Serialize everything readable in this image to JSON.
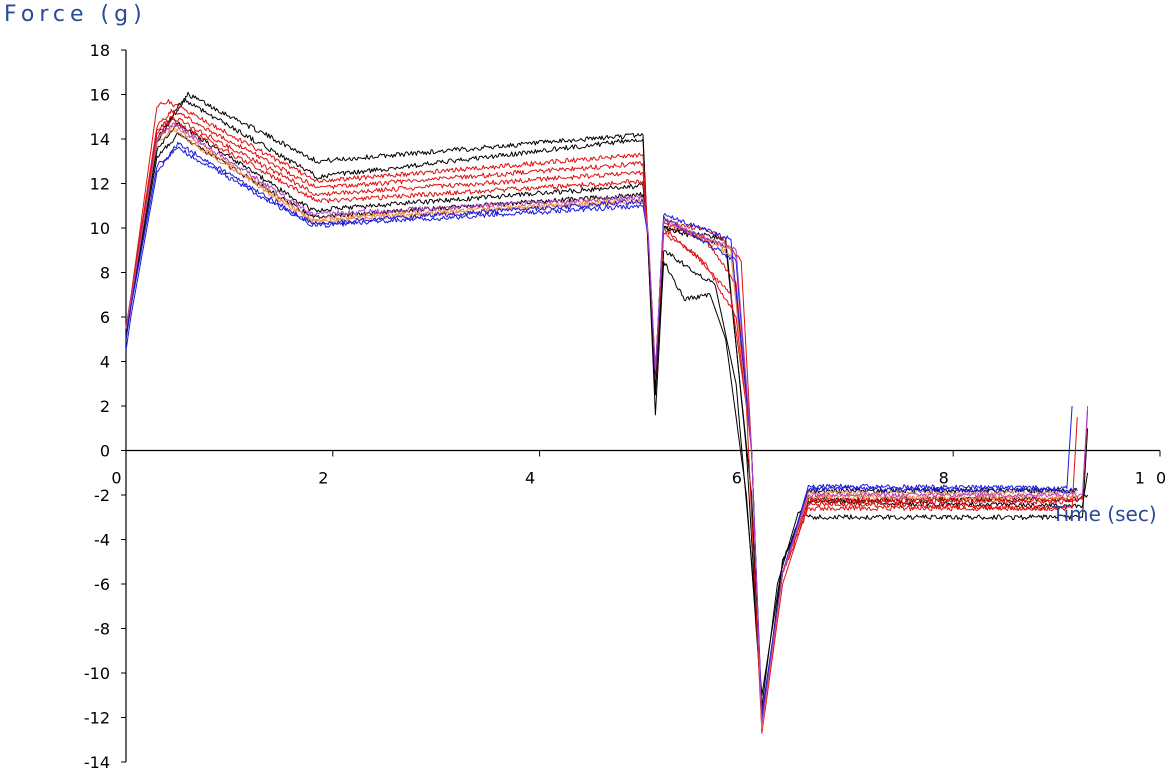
{
  "chart_data": {
    "type": "line",
    "title": "",
    "xlabel": "Time (sec)",
    "ylabel": "Force (g)",
    "xlim": [
      0,
      10
    ],
    "ylim": [
      -14,
      18
    ],
    "x_ticks": [
      "0",
      "2",
      "4",
      "6",
      "8",
      "1 0"
    ],
    "y_ticks": [
      "18",
      "16",
      "14",
      "12",
      "10",
      "8",
      "6",
      "4",
      "2",
      "0",
      "-2",
      "-4",
      "-6",
      "-8",
      "-10",
      "-12",
      "-14"
    ],
    "grid": false,
    "legend": "none",
    "colors": {
      "black": "#000000",
      "red": "#e01010",
      "blue": "#1a1adc",
      "orange": "#f08a4a",
      "purple": "#b040c0"
    },
    "series": [
      {
        "color": "black",
        "values": [
          [
            0,
            5
          ],
          [
            0.05,
            6.8
          ],
          [
            0.3,
            14
          ],
          [
            0.6,
            16
          ],
          [
            1.85,
            13
          ],
          [
            5.0,
            14.2
          ],
          [
            5.05,
            9
          ],
          [
            5.12,
            1.6
          ],
          [
            5.2,
            8.5
          ],
          [
            5.4,
            6.8
          ],
          [
            5.65,
            7
          ],
          [
            5.8,
            5
          ],
          [
            6.0,
            -2
          ],
          [
            6.15,
            -11.5
          ],
          [
            6.3,
            -6
          ],
          [
            6.5,
            -2.8
          ],
          [
            6.65,
            -3
          ],
          [
            9.2,
            -3
          ],
          [
            9.25,
            -3
          ],
          [
            9.3,
            1
          ]
        ]
      },
      {
        "color": "black",
        "values": [
          [
            0,
            5
          ],
          [
            0.05,
            6.6
          ],
          [
            0.3,
            13.8
          ],
          [
            0.55,
            15.8
          ],
          [
            1.85,
            12.3
          ],
          [
            5.0,
            14.0
          ],
          [
            5.05,
            9
          ],
          [
            5.12,
            2.5
          ],
          [
            5.2,
            9
          ],
          [
            5.7,
            7.4
          ],
          [
            5.9,
            3
          ],
          [
            6.05,
            -5
          ],
          [
            6.15,
            -11
          ],
          [
            6.35,
            -5
          ],
          [
            6.6,
            -2.3
          ],
          [
            9.1,
            -2.5
          ],
          [
            9.25,
            -2.5
          ],
          [
            9.3,
            -1
          ]
        ]
      },
      {
        "color": "black",
        "values": [
          [
            0,
            5
          ],
          [
            0.05,
            6.8
          ],
          [
            0.3,
            13.5
          ],
          [
            0.5,
            14.7
          ],
          [
            1.8,
            10.8
          ],
          [
            5.0,
            11.9
          ],
          [
            5.05,
            9.5
          ],
          [
            5.12,
            3
          ],
          [
            5.2,
            10
          ],
          [
            5.8,
            9.5
          ],
          [
            6.0,
            0
          ],
          [
            6.15,
            -12
          ],
          [
            6.35,
            -5.5
          ],
          [
            6.6,
            -1.8
          ],
          [
            9.05,
            -1.8
          ],
          [
            9.2,
            -1.8
          ]
        ]
      },
      {
        "color": "black",
        "values": [
          [
            0,
            5.5
          ],
          [
            0.05,
            6.6
          ],
          [
            0.3,
            13.2
          ],
          [
            0.5,
            14.2
          ],
          [
            1.8,
            10.5
          ],
          [
            5.0,
            11.5
          ],
          [
            5.05,
            9.5
          ],
          [
            5.12,
            3.2
          ],
          [
            5.2,
            10
          ],
          [
            5.8,
            9.2
          ],
          [
            6.05,
            -2
          ],
          [
            6.15,
            -12.3
          ],
          [
            6.35,
            -5
          ],
          [
            6.6,
            -2.2
          ],
          [
            9.2,
            -2.2
          ],
          [
            9.3,
            -2
          ]
        ]
      },
      {
        "color": "red",
        "values": [
          [
            0,
            5.5
          ],
          [
            0.05,
            7
          ],
          [
            0.3,
            15.5
          ],
          [
            0.4,
            15.7
          ],
          [
            1.85,
            12.1
          ],
          [
            5.0,
            13.3
          ],
          [
            5.05,
            9.5
          ],
          [
            5.12,
            3.2
          ],
          [
            5.2,
            9.8
          ],
          [
            5.5,
            8.8
          ],
          [
            5.85,
            7
          ],
          [
            6.0,
            2
          ],
          [
            6.15,
            -12.7
          ],
          [
            6.35,
            -6
          ],
          [
            6.6,
            -2.4
          ],
          [
            9.05,
            -2.6
          ],
          [
            9.15,
            -2.6
          ],
          [
            9.2,
            1.5
          ]
        ]
      },
      {
        "color": "red",
        "values": [
          [
            0,
            5.5
          ],
          [
            0.05,
            7
          ],
          [
            0.3,
            14.6
          ],
          [
            0.45,
            15.3
          ],
          [
            1.85,
            11.8
          ],
          [
            5.0,
            12.9
          ],
          [
            5.05,
            9.6
          ],
          [
            5.12,
            3.3
          ],
          [
            5.2,
            10
          ],
          [
            5.6,
            8.4
          ],
          [
            5.9,
            6
          ],
          [
            6.05,
            0
          ],
          [
            6.15,
            -12.2
          ],
          [
            6.35,
            -5.5
          ],
          [
            6.6,
            -2.6
          ],
          [
            9.1,
            -2.6
          ]
        ]
      },
      {
        "color": "red",
        "values": [
          [
            0,
            5.5
          ],
          [
            0.05,
            6.9
          ],
          [
            0.3,
            14.4
          ],
          [
            0.45,
            15.0
          ],
          [
            1.85,
            11.5
          ],
          [
            5.0,
            12.5
          ],
          [
            5.05,
            9.6
          ],
          [
            5.12,
            3.5
          ],
          [
            5.2,
            10.2
          ],
          [
            5.6,
            9.5
          ],
          [
            5.9,
            7.5
          ],
          [
            6.05,
            0
          ],
          [
            6.15,
            -12.4
          ],
          [
            6.35,
            -5.5
          ],
          [
            6.6,
            -2.3
          ],
          [
            9.15,
            -2.3
          ]
        ]
      },
      {
        "color": "red",
        "values": [
          [
            0,
            5.5
          ],
          [
            0.05,
            6.9
          ],
          [
            0.3,
            14.2
          ],
          [
            0.45,
            14.8
          ],
          [
            1.85,
            11.2
          ],
          [
            5.0,
            12.1
          ],
          [
            5.05,
            9.7
          ],
          [
            5.12,
            3.5
          ],
          [
            5.2,
            10.3
          ],
          [
            5.7,
            9.8
          ],
          [
            5.95,
            8.5
          ],
          [
            6.05,
            0
          ],
          [
            6.15,
            -12.6
          ],
          [
            6.35,
            -5.5
          ],
          [
            6.6,
            -2.2
          ],
          [
            9.25,
            -2.2
          ],
          [
            9.3,
            1.8
          ]
        ]
      },
      {
        "color": "orange",
        "values": [
          [
            0,
            5.5
          ],
          [
            0.05,
            6.8
          ],
          [
            0.3,
            14.0
          ],
          [
            0.45,
            14.6
          ],
          [
            1.8,
            10.4
          ],
          [
            5.0,
            11.3
          ],
          [
            5.05,
            9.8
          ],
          [
            5.12,
            3.6
          ],
          [
            5.2,
            10.4
          ],
          [
            5.85,
            9.0
          ],
          [
            6.05,
            0
          ],
          [
            6.15,
            -12.5
          ],
          [
            6.35,
            -5.5
          ],
          [
            6.6,
            -2.1
          ],
          [
            9.2,
            -2.1
          ]
        ]
      },
      {
        "color": "orange",
        "values": [
          [
            0,
            5.5
          ],
          [
            0.05,
            6.8
          ],
          [
            0.3,
            13.9
          ],
          [
            0.45,
            14.4
          ],
          [
            1.8,
            10.3
          ],
          [
            5.0,
            11.2
          ],
          [
            5.05,
            9.8
          ],
          [
            5.12,
            3.6
          ],
          [
            5.2,
            10.4
          ],
          [
            5.85,
            8.8
          ],
          [
            6.05,
            0
          ],
          [
            6.15,
            -12.4
          ],
          [
            6.35,
            -5.5
          ],
          [
            6.6,
            -1.9
          ],
          [
            9.2,
            -1.9
          ]
        ]
      },
      {
        "color": "blue",
        "values": [
          [
            0,
            4.5
          ],
          [
            0.05,
            6.1
          ],
          [
            0.3,
            12.5
          ],
          [
            0.5,
            13.8
          ],
          [
            1.8,
            10.2
          ],
          [
            5.0,
            11.2
          ],
          [
            5.05,
            9.6
          ],
          [
            5.12,
            3.4
          ],
          [
            5.2,
            10.6
          ],
          [
            5.85,
            9.5
          ],
          [
            6.05,
            0
          ],
          [
            6.15,
            -12
          ],
          [
            6.35,
            -5.5
          ],
          [
            6.6,
            -1.6
          ],
          [
            9.05,
            -1.7
          ],
          [
            9.1,
            -1.7
          ],
          [
            9.15,
            2
          ]
        ]
      },
      {
        "color": "blue",
        "values": [
          [
            0,
            5
          ],
          [
            0.05,
            6.5
          ],
          [
            0.3,
            12.8
          ],
          [
            0.5,
            13.6
          ],
          [
            1.8,
            10.1
          ],
          [
            5.0,
            11.0
          ],
          [
            5.05,
            9.6
          ],
          [
            5.12,
            3.5
          ],
          [
            5.2,
            10.5
          ],
          [
            5.9,
            8.5
          ],
          [
            6.05,
            0
          ],
          [
            6.15,
            -11.8
          ],
          [
            6.35,
            -5.5
          ],
          [
            6.6,
            -1.7
          ],
          [
            9.2,
            -1.8
          ]
        ]
      },
      {
        "color": "purple",
        "values": [
          [
            0,
            5.5
          ],
          [
            0.05,
            6.8
          ],
          [
            0.3,
            14.0
          ],
          [
            0.45,
            14.7
          ],
          [
            1.8,
            10.6
          ],
          [
            5.0,
            11.4
          ],
          [
            5.05,
            9.7
          ],
          [
            5.12,
            3.6
          ],
          [
            5.2,
            10.3
          ],
          [
            5.9,
            9.0
          ],
          [
            6.05,
            0
          ],
          [
            6.15,
            -12.3
          ],
          [
            6.35,
            -5.5
          ],
          [
            6.6,
            -2.0
          ],
          [
            9.25,
            -2.0
          ],
          [
            9.3,
            2
          ]
        ]
      }
    ]
  }
}
